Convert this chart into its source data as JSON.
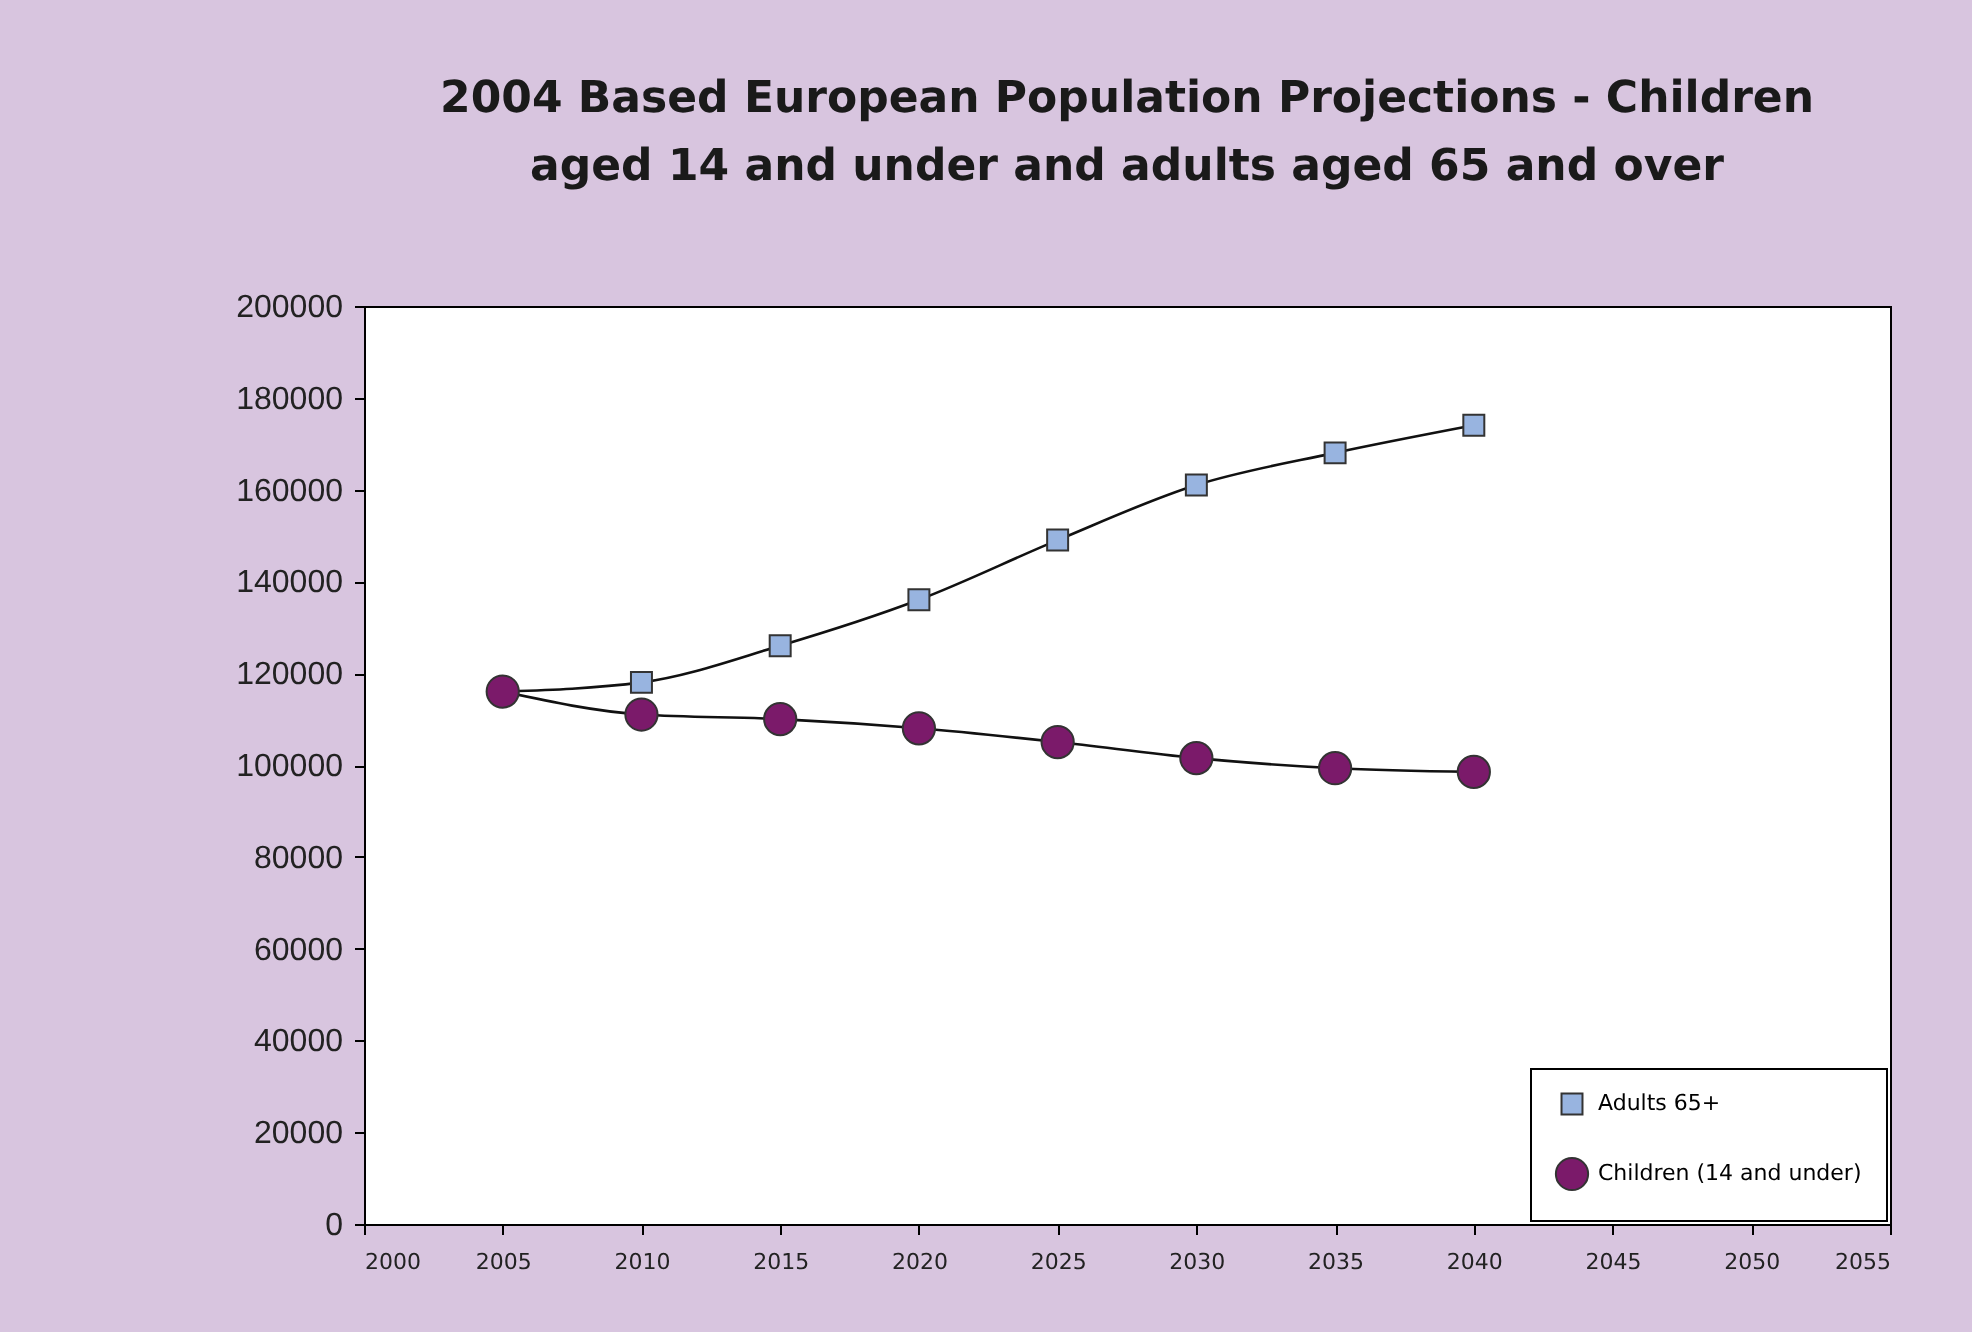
{
  "chart_data": {
    "type": "line",
    "title": "2004 Based European Population Projections - Children\naged 14 and under and adults aged 65 and over",
    "x": [
      2005,
      2010,
      2015,
      2020,
      2025,
      2030,
      2035,
      2040
    ],
    "series": [
      {
        "name": "Adults 65+",
        "color": "#98b4e0",
        "marker": "square",
        "values": [
          116000,
          118000,
          126000,
          136000,
          149000,
          161000,
          168000,
          174000
        ]
      },
      {
        "name": "Children (14 and under)",
        "color": "#7b1a6a",
        "marker": "circle",
        "values": [
          116000,
          111000,
          110000,
          108000,
          105000,
          101500,
          99300,
          98500
        ]
      }
    ],
    "xlim": [
      2000,
      2055
    ],
    "xticks": [
      2000,
      2005,
      2010,
      2015,
      2020,
      2025,
      2030,
      2035,
      2040,
      2045,
      2050,
      2055
    ],
    "ylim": [
      0,
      200000
    ],
    "yticks": [
      0,
      20000,
      40000,
      60000,
      80000,
      100000,
      120000,
      140000,
      160000,
      180000,
      200000
    ],
    "grid": false,
    "legend": "bottom right"
  }
}
